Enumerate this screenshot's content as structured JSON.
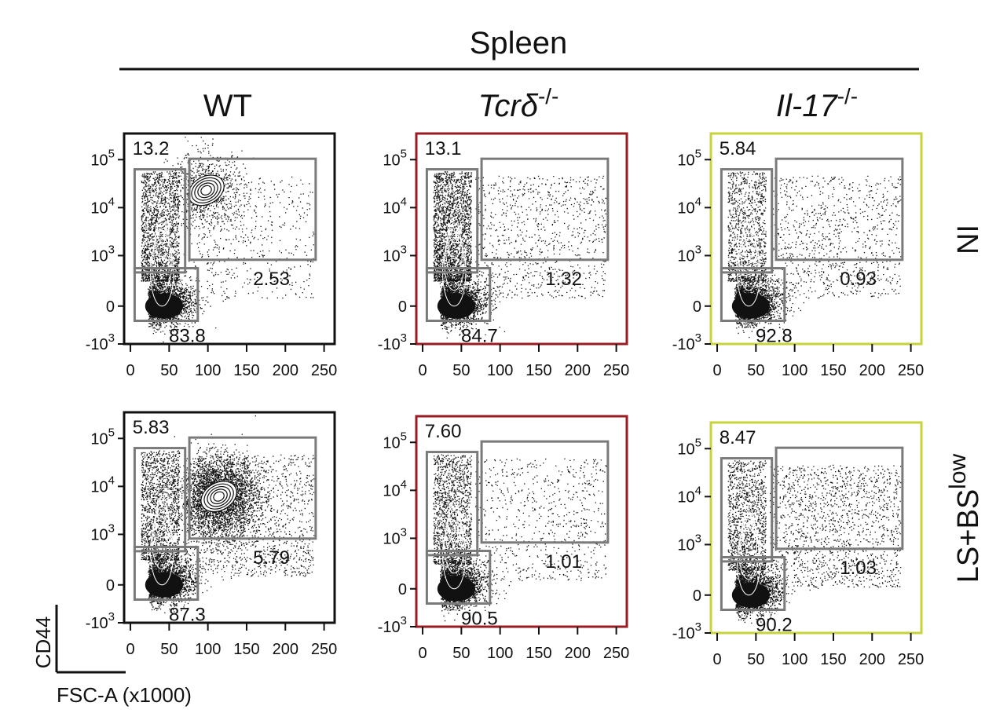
{
  "figure": {
    "tissue": "Spleen",
    "columns": [
      {
        "id": "wt",
        "base": "WT",
        "italic": false,
        "sup": "",
        "frame_color": "#111111"
      },
      {
        "id": "tcrd",
        "base": "Tcrδ",
        "italic": true,
        "sup": "-/-",
        "frame_color": "#9a1c22"
      },
      {
        "id": "il17",
        "base": "Il-17",
        "italic": true,
        "sup": "-/-",
        "frame_color": "#c8d23a"
      }
    ],
    "rows": [
      {
        "id": "ni",
        "label": "NI",
        "sup": ""
      },
      {
        "id": "lsbs",
        "label": "LS+BS",
        "sup": "low"
      }
    ],
    "axis_key": {
      "y": "CD44",
      "x": "FSC-A (x1000)"
    },
    "y_tick_labels": [
      {
        "base": "10",
        "exp": "5"
      },
      {
        "base": "10",
        "exp": "4"
      },
      {
        "base": "10",
        "exp": "3"
      },
      {
        "base": "0",
        "exp": ""
      },
      {
        "base": "-10",
        "exp": "3"
      }
    ],
    "x_tick_labels": [
      "0",
      "50",
      "100",
      "150",
      "200",
      "250"
    ],
    "gate_color": "#7a7a7a"
  },
  "chart_data": [
    {
      "type": "scatter",
      "row": "NI",
      "column": "WT",
      "x_axis": "FSC-A (x1000)",
      "y_axis": "CD44",
      "xlim": [
        0,
        250
      ],
      "y_scale": "biexponential",
      "ylim": [
        -1000,
        100000
      ],
      "gates": [
        {
          "name": "CD44 high, FSC low",
          "value": "13.2"
        },
        {
          "name": "CD44 high, FSC high",
          "value": "2.53"
        },
        {
          "name": "CD44 low",
          "value": "83.8"
        }
      ],
      "gate_values": [
        13.2,
        2.53,
        83.8
      ]
    },
    {
      "type": "scatter",
      "row": "NI",
      "column": "Tcrδ-/-",
      "x_axis": "FSC-A (x1000)",
      "y_axis": "CD44",
      "xlim": [
        0,
        250
      ],
      "y_scale": "biexponential",
      "ylim": [
        -1000,
        100000
      ],
      "gates": [
        {
          "name": "CD44 high, FSC low",
          "value": "13.1"
        },
        {
          "name": "CD44 high, FSC high",
          "value": "1.32"
        },
        {
          "name": "CD44 low",
          "value": "84.7"
        }
      ],
      "gate_values": [
        13.1,
        1.32,
        84.7
      ]
    },
    {
      "type": "scatter",
      "row": "NI",
      "column": "Il-17-/-",
      "x_axis": "FSC-A (x1000)",
      "y_axis": "CD44",
      "xlim": [
        0,
        250
      ],
      "y_scale": "biexponential",
      "ylim": [
        -1000,
        100000
      ],
      "gates": [
        {
          "name": "CD44 high, FSC low",
          "value": "5.84"
        },
        {
          "name": "CD44 high, FSC high",
          "value": "0.93"
        },
        {
          "name": "CD44 low",
          "value": "92.8"
        }
      ],
      "gate_values": [
        5.84,
        0.93,
        92.8
      ]
    },
    {
      "type": "scatter",
      "row": "LS+BSlow",
      "column": "WT",
      "x_axis": "FSC-A (x1000)",
      "y_axis": "CD44",
      "xlim": [
        0,
        250
      ],
      "y_scale": "biexponential",
      "ylim": [
        -1000,
        100000
      ],
      "gates": [
        {
          "name": "CD44 high, FSC low",
          "value": "5.83"
        },
        {
          "name": "CD44 high, FSC high",
          "value": "5.79"
        },
        {
          "name": "CD44 low",
          "value": "87.3"
        }
      ],
      "gate_values": [
        5.83,
        5.79,
        87.3
      ]
    },
    {
      "type": "scatter",
      "row": "LS+BSlow",
      "column": "Tcrδ-/-",
      "x_axis": "FSC-A (x1000)",
      "y_axis": "CD44",
      "xlim": [
        0,
        250
      ],
      "y_scale": "biexponential",
      "ylim": [
        -1000,
        100000
      ],
      "gates": [
        {
          "name": "CD44 high, FSC low",
          "value": "7.60"
        },
        {
          "name": "CD44 high, FSC high",
          "value": "1.01"
        },
        {
          "name": "CD44 low",
          "value": "90.5"
        }
      ],
      "gate_values": [
        7.6,
        1.01,
        90.5
      ]
    },
    {
      "type": "scatter",
      "row": "LS+BSlow",
      "column": "Il-17-/-",
      "x_axis": "FSC-A (x1000)",
      "y_axis": "CD44",
      "xlim": [
        0,
        250
      ],
      "y_scale": "biexponential",
      "ylim": [
        -1000,
        100000
      ],
      "gates": [
        {
          "name": "CD44 high, FSC low",
          "value": "8.47"
        },
        {
          "name": "CD44 high, FSC high",
          "value": "1.03"
        },
        {
          "name": "CD44 low",
          "value": "90.2"
        }
      ],
      "gate_values": [
        8.47,
        1.03,
        90.2
      ]
    }
  ]
}
